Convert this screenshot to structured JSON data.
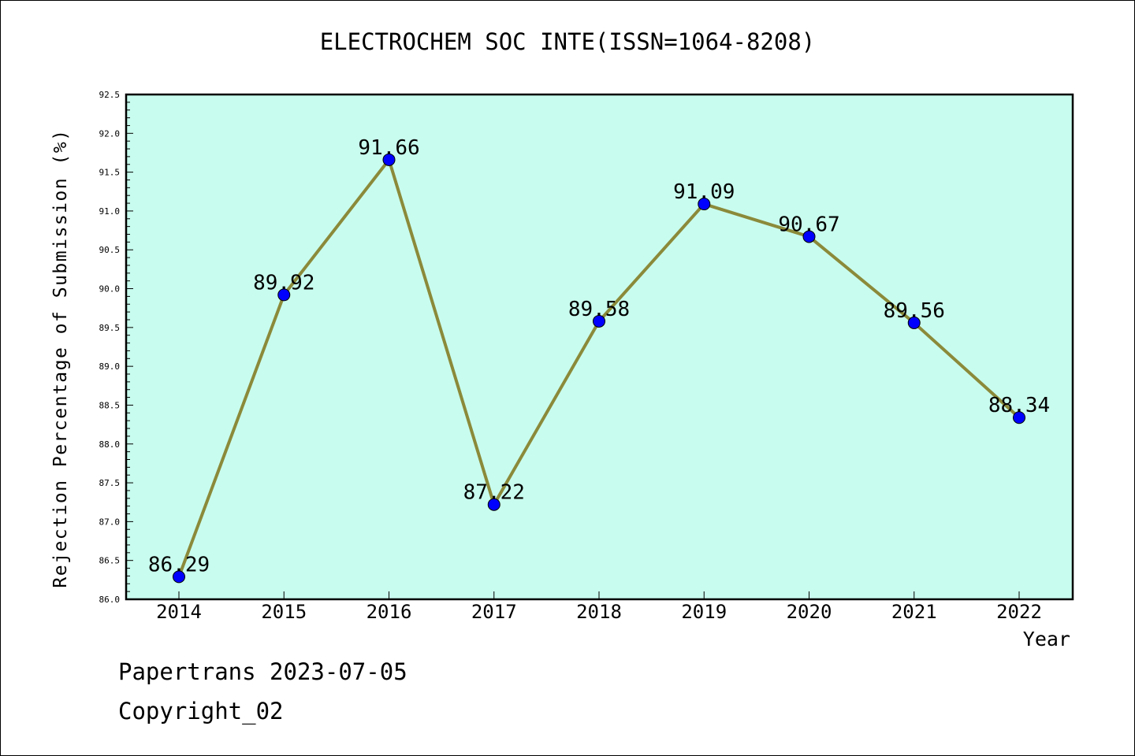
{
  "chart_data": {
    "type": "line",
    "title": "ELECTROCHEM SOC INTE(ISSN=1064-8208)",
    "xlabel": "Year",
    "ylabel": "Rejection Percentage of Submission (%)",
    "categories": [
      "2014",
      "2015",
      "2016",
      "2017",
      "2018",
      "2019",
      "2020",
      "2021",
      "2022"
    ],
    "values": [
      86.29,
      89.92,
      91.66,
      87.22,
      89.58,
      91.09,
      90.67,
      89.56,
      88.34
    ],
    "data_labels": [
      "86.29",
      "89.92",
      "91.66",
      "87.22",
      "89.58",
      "91.09",
      "90.67",
      "89.56",
      "88.34"
    ],
    "ylim": [
      86.0,
      92.5
    ],
    "yticks": [
      "86.0",
      "86.5",
      "87.0",
      "87.5",
      "88.0",
      "88.5",
      "89.0",
      "89.5",
      "90.0",
      "90.5",
      "91.0",
      "91.5",
      "92.0",
      "92.5"
    ],
    "grid": false,
    "colors": {
      "plot_background": "#c8fcee",
      "line": "#8b8a3a",
      "marker": "#0000ff"
    }
  },
  "footer": {
    "source": "Papertrans 2023-07-05",
    "copyright": "Copyright_02"
  }
}
